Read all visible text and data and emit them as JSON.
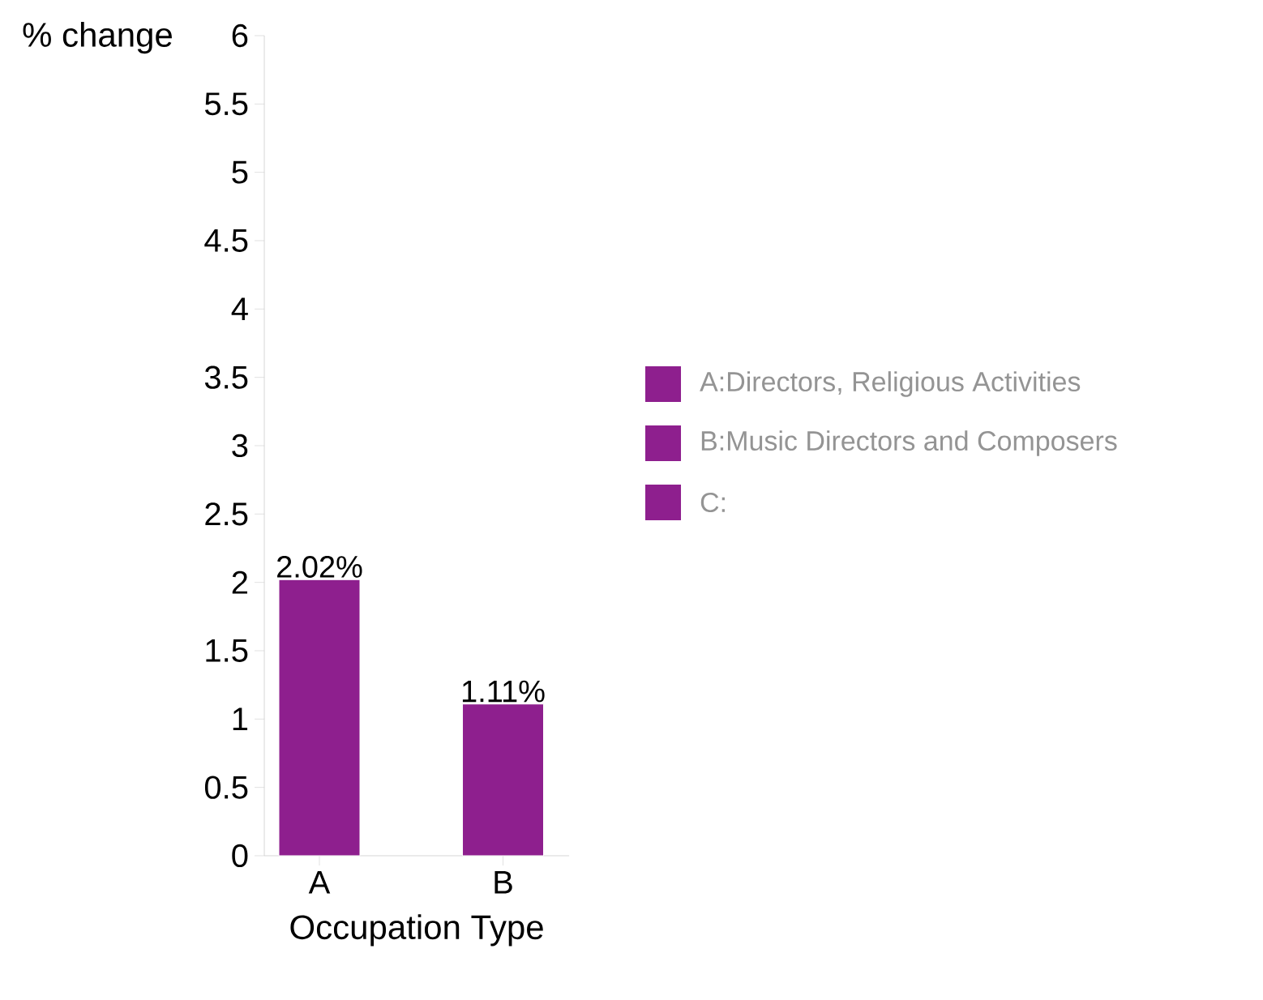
{
  "chart_data": {
    "type": "bar",
    "xlabel": "Occupation Type",
    "ylabel": "% change",
    "categories": [
      "A",
      "B"
    ],
    "series": [
      {
        "color": "#8e1f8e",
        "values": [
          2.02,
          1.11
        ],
        "value_labels": [
          "2.02%",
          "1.11%"
        ]
      }
    ],
    "ylim": [
      0,
      6
    ],
    "yticks": [
      0,
      0.5,
      1,
      1.5,
      2,
      2.5,
      3,
      3.5,
      4,
      4.5,
      5,
      5.5,
      6
    ],
    "annotations": [
      "A:Directors, Religious Activities",
      "B:Music Directors and Composers",
      "C:"
    ]
  }
}
